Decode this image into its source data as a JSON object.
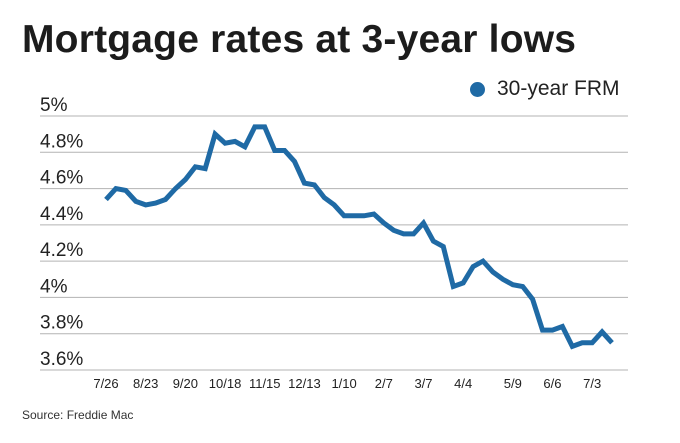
{
  "title": "Mortgage rates at 3-year lows",
  "source": "Source: Freddie Mac",
  "colors": {
    "line": "#1f6aa5",
    "grid": "#b3b3b3"
  },
  "chart_data": {
    "type": "line",
    "title": "Mortgage rates at 3-year lows",
    "xlabel": "",
    "ylabel": "",
    "ylim": [
      3.6,
      5.0
    ],
    "yticks": [
      3.6,
      3.8,
      4.0,
      4.2,
      4.4,
      4.6,
      4.8,
      5.0
    ],
    "ytick_labels": [
      "3.6%",
      "3.8%",
      "4%",
      "4.2%",
      "4.4%",
      "4.6%",
      "4.8%",
      "5%"
    ],
    "xtick_labels": [
      "7/26",
      "8/23",
      "9/20",
      "10/18",
      "11/15",
      "12/13",
      "1/10",
      "2/7",
      "3/7",
      "4/4",
      "5/9",
      "6/6",
      "7/3"
    ],
    "xtick_positions": [
      0,
      4,
      8,
      12,
      16,
      20,
      24,
      28,
      32,
      36,
      41,
      45,
      49
    ],
    "legend": {
      "placement": "top-right"
    },
    "grid": "horizontal",
    "series": [
      {
        "name": "30-year FRM",
        "values": [
          4.54,
          4.6,
          4.59,
          4.53,
          4.51,
          4.52,
          4.54,
          4.6,
          4.65,
          4.72,
          4.71,
          4.9,
          4.85,
          4.86,
          4.83,
          4.94,
          4.94,
          4.81,
          4.81,
          4.75,
          4.63,
          4.62,
          4.55,
          4.51,
          4.45,
          4.45,
          4.45,
          4.46,
          4.41,
          4.37,
          4.35,
          4.35,
          4.41,
          4.31,
          4.28,
          4.06,
          4.08,
          4.17,
          4.2,
          4.14,
          4.1,
          4.07,
          4.06,
          3.99,
          3.82,
          3.82,
          3.84,
          3.73,
          3.75,
          3.75,
          3.81,
          3.75
        ]
      }
    ]
  }
}
